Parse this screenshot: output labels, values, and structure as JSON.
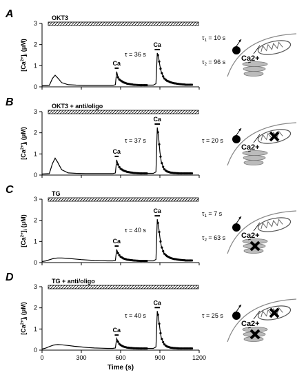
{
  "chart_data": [
    {
      "type": "line",
      "panel_letter": "A",
      "condition": "OKT3",
      "ylabel": "[Ca2+]i (μM)",
      "ylim": [
        0,
        3
      ],
      "yticks": [
        0,
        1,
        2,
        3
      ],
      "xlim": [
        0,
        1200
      ],
      "xticks": [
        0,
        300,
        600,
        900,
        1200
      ],
      "series": [
        {
          "x": [
            0,
            55,
            80,
            100,
            120,
            150,
            200,
            260,
            330,
            400,
            450,
            500,
            540,
            560,
            570,
            580,
            590,
            600,
            620,
            650,
            700,
            750,
            800,
            850,
            870,
            880,
            890,
            900,
            910,
            930,
            950,
            980,
            1000,
            1050,
            1100,
            1150
          ],
          "values": [
            0.05,
            0.07,
            0.4,
            0.55,
            0.42,
            0.2,
            0.1,
            0.08,
            0.07,
            0.07,
            0.07,
            0.07,
            0.07,
            0.1,
            0.72,
            0.45,
            0.35,
            0.3,
            0.22,
            0.15,
            0.1,
            0.08,
            0.08,
            0.08,
            0.15,
            1.6,
            1.4,
            1.0,
            0.72,
            0.42,
            0.3,
            0.22,
            0.18,
            0.13,
            0.1,
            0.1
          ]
        }
      ],
      "ca_marks": [
        {
          "label": "Ca",
          "x_start": 555,
          "x_end": 585,
          "peak_x": 570,
          "peak_y": 0.72,
          "fit_x_start": 580,
          "fit_x_end": 800
        },
        {
          "label": "Ca",
          "x_start": 860,
          "x_end": 900,
          "peak_x": 880,
          "peak_y": 1.6,
          "fit_x_start": 885,
          "fit_x_end": 1150
        }
      ],
      "annotations": [
        {
          "text": "τ = 36 s"
        },
        {
          "text": "τ1 = 10 s"
        },
        {
          "text": "τ2 = 96 s"
        }
      ]
    },
    {
      "type": "line",
      "panel_letter": "B",
      "condition": "OKT3 + anti/oligo",
      "ylabel": "[Ca2+]i (μM)",
      "ylim": [
        0,
        3
      ],
      "yticks": [
        0,
        1,
        2,
        3
      ],
      "xlim": [
        0,
        1200
      ],
      "xticks": [
        0,
        300,
        600,
        900,
        1200
      ],
      "series": [
        {
          "x": [
            0,
            55,
            80,
            100,
            120,
            150,
            200,
            260,
            330,
            400,
            450,
            500,
            540,
            560,
            570,
            580,
            590,
            600,
            620,
            650,
            700,
            750,
            800,
            850,
            870,
            880,
            890,
            900,
            910,
            930,
            950,
            980,
            1000,
            1050,
            1100,
            1150
          ],
          "values": [
            0.05,
            0.07,
            0.55,
            0.8,
            0.6,
            0.25,
            0.1,
            0.08,
            0.07,
            0.07,
            0.07,
            0.07,
            0.07,
            0.1,
            0.72,
            0.5,
            0.38,
            0.3,
            0.22,
            0.15,
            0.1,
            0.08,
            0.08,
            0.08,
            0.15,
            2.25,
            1.8,
            1.1,
            0.65,
            0.3,
            0.18,
            0.12,
            0.1,
            0.08,
            0.08,
            0.08
          ]
        }
      ],
      "ca_marks": [
        {
          "label": "Ca",
          "x_start": 555,
          "x_end": 585,
          "peak_x": 570,
          "peak_y": 0.72,
          "fit_x_start": 580,
          "fit_x_end": 800
        },
        {
          "label": "Ca",
          "x_start": 860,
          "x_end": 900,
          "peak_x": 880,
          "peak_y": 2.25,
          "fit_x_start": 885,
          "fit_x_end": 1150
        }
      ],
      "annotations": [
        {
          "text": "τ = 37 s"
        },
        {
          "text": "τ = 20 s"
        }
      ]
    },
    {
      "type": "line",
      "panel_letter": "C",
      "condition": "TG",
      "ylabel": "[Ca2+]i (μM)",
      "ylim": [
        0,
        3
      ],
      "yticks": [
        0,
        1,
        2,
        3
      ],
      "xlim": [
        0,
        1200
      ],
      "xticks": [
        0,
        300,
        600,
        900,
        1200
      ],
      "series": [
        {
          "x": [
            0,
            30,
            60,
            90,
            120,
            150,
            200,
            250,
            300,
            350,
            400,
            450,
            500,
            540,
            560,
            570,
            580,
            590,
            600,
            620,
            650,
            700,
            750,
            800,
            850,
            870,
            880,
            890,
            900,
            910,
            930,
            950,
            980,
            1000,
            1050,
            1100,
            1150
          ],
          "values": [
            0.05,
            0.08,
            0.14,
            0.2,
            0.22,
            0.22,
            0.2,
            0.17,
            0.14,
            0.12,
            0.1,
            0.09,
            0.08,
            0.08,
            0.1,
            0.62,
            0.45,
            0.35,
            0.28,
            0.2,
            0.14,
            0.1,
            0.08,
            0.08,
            0.08,
            0.15,
            2.05,
            1.7,
            1.2,
            0.8,
            0.45,
            0.32,
            0.22,
            0.18,
            0.13,
            0.1,
            0.1
          ]
        }
      ],
      "ca_marks": [
        {
          "label": "Ca",
          "x_start": 555,
          "x_end": 585,
          "peak_x": 570,
          "peak_y": 0.62,
          "fit_x_start": 580,
          "fit_x_end": 800
        },
        {
          "label": "Ca",
          "x_start": 860,
          "x_end": 900,
          "peak_x": 880,
          "peak_y": 2.05,
          "fit_x_start": 885,
          "fit_x_end": 1150
        }
      ],
      "annotations": [
        {
          "text": "τ = 40 s"
        },
        {
          "text": "τ1 = 7 s"
        },
        {
          "text": "τ2 = 63 s"
        }
      ]
    },
    {
      "type": "line",
      "panel_letter": "D",
      "condition": "TG + anti/oligo",
      "ylabel": "[Ca2+]i (μM)",
      "ylim": [
        0,
        3
      ],
      "yticks": [
        0,
        1,
        2,
        3
      ],
      "xlim": [
        0,
        1200
      ],
      "xticks": [
        0,
        300,
        600,
        900,
        1200
      ],
      "xlabel": "Time (s)",
      "series": [
        {
          "x": [
            0,
            30,
            60,
            90,
            120,
            150,
            200,
            250,
            300,
            350,
            400,
            450,
            500,
            540,
            560,
            570,
            580,
            590,
            600,
            620,
            650,
            700,
            750,
            800,
            850,
            870,
            880,
            890,
            900,
            910,
            930,
            950,
            980,
            1000,
            1050,
            1100,
            1150
          ],
          "values": [
            0.05,
            0.1,
            0.18,
            0.24,
            0.26,
            0.25,
            0.22,
            0.18,
            0.15,
            0.12,
            0.1,
            0.09,
            0.08,
            0.08,
            0.1,
            0.55,
            0.4,
            0.3,
            0.24,
            0.17,
            0.12,
            0.09,
            0.08,
            0.08,
            0.08,
            0.15,
            1.85,
            1.5,
            1.0,
            0.6,
            0.3,
            0.18,
            0.12,
            0.1,
            0.08,
            0.08,
            0.08
          ]
        }
      ],
      "ca_marks": [
        {
          "label": "Ca",
          "x_start": 555,
          "x_end": 585,
          "peak_x": 570,
          "peak_y": 0.55,
          "fit_x_start": 580,
          "fit_x_end": 800
        },
        {
          "label": "Ca",
          "x_start": 860,
          "x_end": 900,
          "peak_x": 880,
          "peak_y": 1.85,
          "fit_x_start": 885,
          "fit_x_end": 1150
        }
      ],
      "annotations": [
        {
          "text": "τ = 40 s"
        },
        {
          "text": "τ = 25 s"
        }
      ]
    }
  ],
  "schematics": [
    {
      "panel": "A",
      "label": "Ca2+",
      "mito_blocked": false,
      "er_blocked": false
    },
    {
      "panel": "B",
      "label": "Ca2+",
      "mito_blocked": true,
      "er_blocked": false
    },
    {
      "panel": "C",
      "label": "Ca2+",
      "mito_blocked": false,
      "er_blocked": true
    },
    {
      "panel": "D",
      "label": "Ca2+",
      "mito_blocked": true,
      "er_blocked": true
    }
  ]
}
